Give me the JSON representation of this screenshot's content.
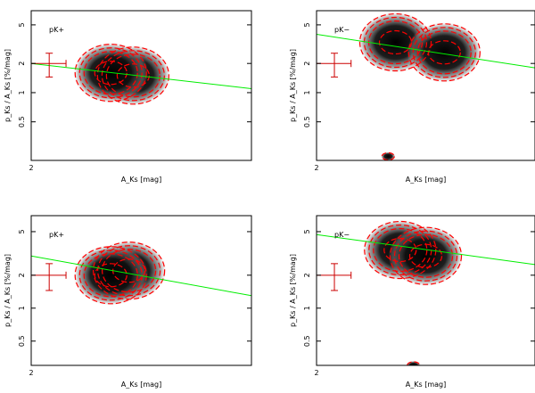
{
  "chart_data": [
    {
      "type": "density",
      "label": "pK+",
      "xlabel": "A_Ks [mag]",
      "ylabel": "p_Ks / A_Ks [%/mag]",
      "xlog": true,
      "ylog": true,
      "xlim": [
        2,
        8
      ],
      "ylim": [
        0.2,
        7
      ],
      "xticks": [
        2
      ],
      "yticks": [
        0.5,
        1,
        2,
        5
      ],
      "fit_line": {
        "x": [
          2,
          8
        ],
        "y": [
          2.0,
          1.1
        ],
        "color": "#00ee00"
      },
      "error_bar": {
        "x": 2.24,
        "y": 2,
        "xerr": 0.25,
        "yerr": 0.55,
        "color": "#cc0000"
      },
      "density": [
        {
          "x": 3.8,
          "y": 1.5
        },
        {
          "x": 3.3,
          "y": 1.6
        }
      ],
      "contour_color": "#ff0000"
    },
    {
      "type": "density",
      "label": "pK−",
      "xlabel": "A_Ks [mag]",
      "ylabel": "p_Ks / A_Ks [%/mag]",
      "xlog": true,
      "ylog": true,
      "xlim": [
        2,
        8
      ],
      "ylim": [
        0.2,
        7
      ],
      "xticks": [
        2
      ],
      "yticks": [
        0.5,
        1,
        2,
        5
      ],
      "fit_line": {
        "x": [
          2,
          8
        ],
        "y": [
          4.0,
          1.8
        ],
        "color": "#00ee00"
      },
      "error_bar": {
        "x": 2.24,
        "y": 2,
        "xerr": 0.25,
        "yerr": 0.55,
        "color": "#cc0000"
      },
      "density": [
        {
          "x": 3.3,
          "y": 3.3
        },
        {
          "x": 4.5,
          "y": 2.6
        },
        {
          "x": 3.15,
          "y": 0.22
        }
      ],
      "contour_color": "#ff0000"
    },
    {
      "type": "density",
      "label": "pK+",
      "xlabel": "A_Ks [mag]",
      "ylabel": "p_Ks / A_Ks [%/mag]",
      "xlog": true,
      "ylog": true,
      "xlim": [
        2,
        8
      ],
      "ylim": [
        0.3,
        7
      ],
      "xticks": [
        2
      ],
      "yticks": [
        0.5,
        1,
        2,
        5
      ],
      "fit_line": {
        "x": [
          2,
          8
        ],
        "y": [
          3.0,
          1.3
        ],
        "color": "#00ee00"
      },
      "error_bar": {
        "x": 2.24,
        "y": 2,
        "xerr": 0.25,
        "yerr": 0.55,
        "color": "#cc0000"
      },
      "density": [
        {
          "x": 3.7,
          "y": 2.2
        },
        {
          "x": 3.3,
          "y": 2.0
        }
      ],
      "contour_color": "#ff0000"
    },
    {
      "type": "density",
      "label": "pK−",
      "xlabel": "A_Ks [mag]",
      "ylabel": "p_Ks / A_Ks [%/mag]",
      "xlog": true,
      "ylog": true,
      "xlim": [
        2,
        8
      ],
      "ylim": [
        0.3,
        7
      ],
      "xticks": [
        2
      ],
      "yticks": [
        0.5,
        1,
        2,
        5
      ],
      "fit_line": {
        "x": [
          2,
          8
        ],
        "y": [
          4.7,
          2.5
        ],
        "color": "#00ee00"
      },
      "error_bar": {
        "x": 2.24,
        "y": 2,
        "xerr": 0.25,
        "yerr": 0.55,
        "color": "#cc0000"
      },
      "density": [
        {
          "x": 3.4,
          "y": 3.4
        },
        {
          "x": 4.0,
          "y": 3.0
        },
        {
          "x": 3.7,
          "y": 0.3
        }
      ],
      "contour_color": "#ff0000"
    }
  ]
}
